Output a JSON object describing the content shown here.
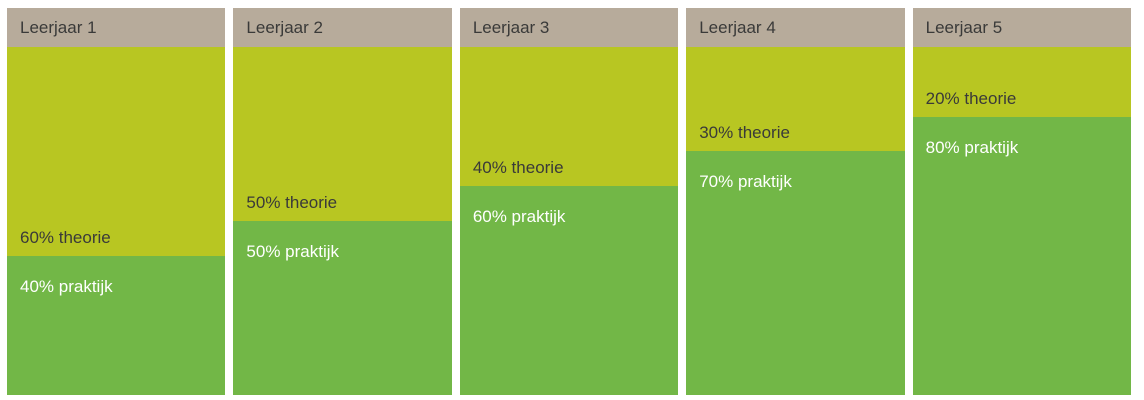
{
  "chart_data": {
    "type": "bar",
    "variant": "stacked-100-percent-columns",
    "title": "",
    "categories": [
      "Leerjaar 1",
      "Leerjaar 2",
      "Leerjaar 3",
      "Leerjaar 4",
      "Leerjaar 5"
    ],
    "series": [
      {
        "name": "theorie",
        "values": [
          60,
          50,
          40,
          30,
          20
        ],
        "color": "#b8c622"
      },
      {
        "name": "praktijk",
        "values": [
          40,
          50,
          60,
          70,
          80
        ],
        "color": "#72b747"
      }
    ],
    "value_unit": "%",
    "ylim": [
      0,
      100
    ],
    "grid": false,
    "legend": "none",
    "data_labels": "inside-each-segment"
  },
  "columns": [
    {
      "label": "Leerjaar 1",
      "theorie_pct": 60,
      "praktijk_pct": 40,
      "theorie_label": "60% theorie",
      "praktijk_label": "40% praktijk"
    },
    {
      "label": "Leerjaar 2",
      "theorie_pct": 50,
      "praktijk_pct": 50,
      "theorie_label": "50% theorie",
      "praktijk_label": "50% praktijk"
    },
    {
      "label": "Leerjaar 3",
      "theorie_pct": 40,
      "praktijk_pct": 60,
      "theorie_label": "40% theorie",
      "praktijk_label": "60% praktijk"
    },
    {
      "label": "Leerjaar 4",
      "theorie_pct": 30,
      "praktijk_pct": 70,
      "theorie_label": "30% theorie",
      "praktijk_label": "70% praktijk"
    },
    {
      "label": "Leerjaar 5",
      "theorie_pct": 20,
      "praktijk_pct": 80,
      "theorie_label": "20% theorie",
      "praktijk_label": "80% praktijk"
    }
  ],
  "colors": {
    "page_bg": "#ffffff",
    "header_bg": "#b7ab9b",
    "theorie_bg": "#b8c622",
    "praktijk_bg": "#72b747",
    "dark_text": "#3a3a39",
    "light_text": "#ffffff"
  }
}
